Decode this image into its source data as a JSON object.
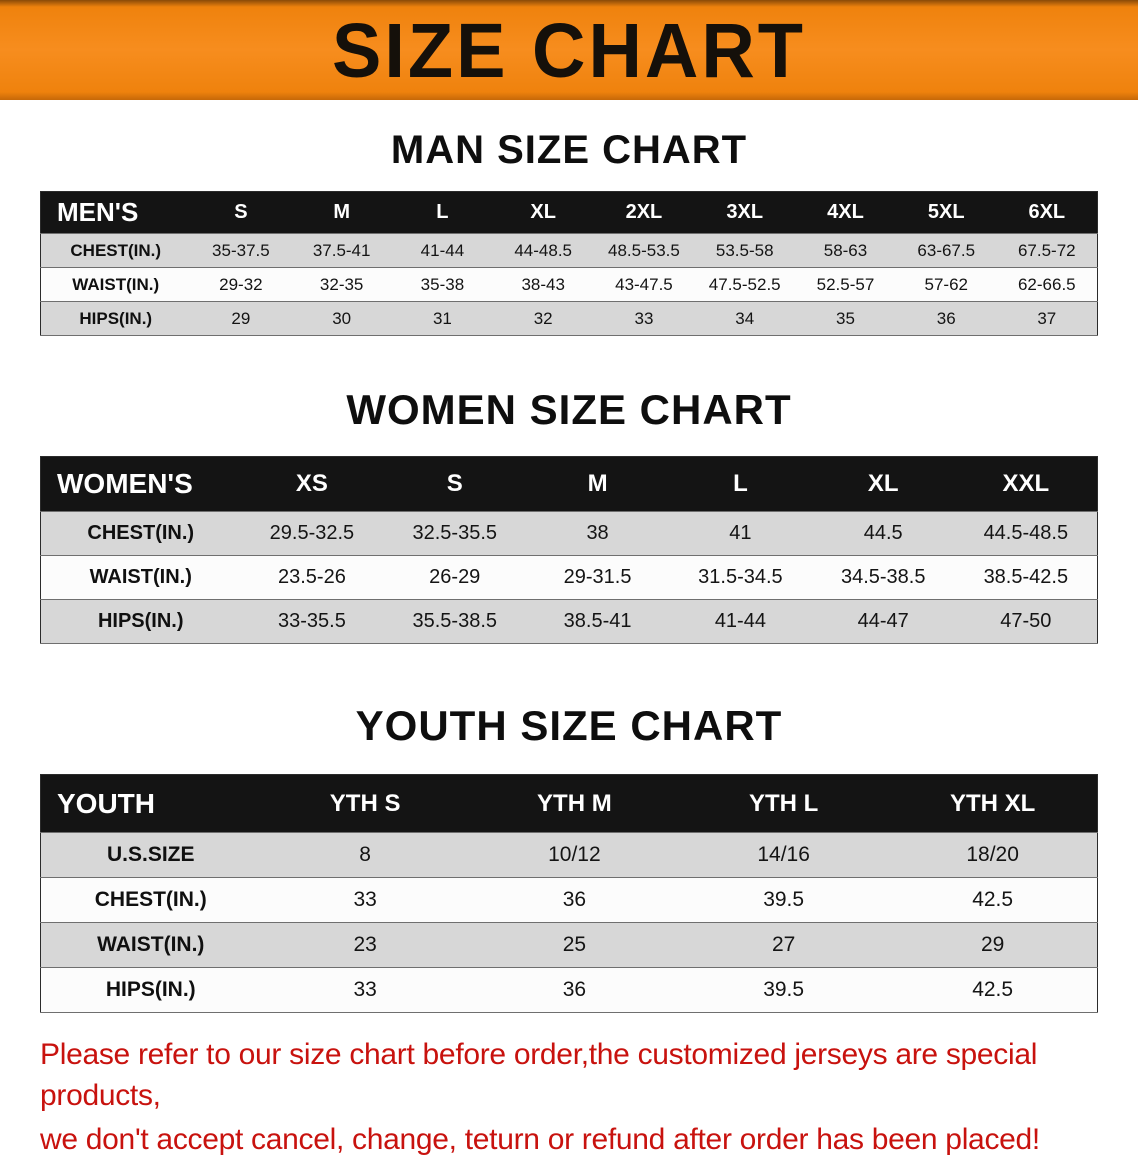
{
  "banner": {
    "title": "SIZE CHART",
    "bg_color": "#f78d1e",
    "text_color": "#15100a"
  },
  "sections": [
    {
      "id": "men",
      "title": "MAN SIZE CHART",
      "table": {
        "header": [
          "MEN'S",
          "S",
          "M",
          "L",
          "XL",
          "2XL",
          "3XL",
          "4XL",
          "5XL",
          "6XL"
        ],
        "rows": [
          [
            "CHEST(IN.)",
            "35-37.5",
            "37.5-41",
            "41-44",
            "44-48.5",
            "48.5-53.5",
            "53.5-58",
            "58-63",
            "63-67.5",
            "67.5-72"
          ],
          [
            "WAIST(IN.)",
            "29-32",
            "32-35",
            "35-38",
            "38-43",
            "43-47.5",
            "47.5-52.5",
            "52.5-57",
            "57-62",
            "62-66.5"
          ],
          [
            "HIPS(IN.)",
            "29",
            "30",
            "31",
            "32",
            "33",
            "34",
            "35",
            "36",
            "37"
          ]
        ]
      }
    },
    {
      "id": "women",
      "title": "WOMEN SIZE CHART",
      "table": {
        "header": [
          "WOMEN'S",
          "XS",
          "S",
          "M",
          "L",
          "XL",
          "XXL"
        ],
        "rows": [
          [
            "CHEST(IN.)",
            "29.5-32.5",
            "32.5-35.5",
            "38",
            "41",
            "44.5",
            "44.5-48.5"
          ],
          [
            "WAIST(IN.)",
            "23.5-26",
            "26-29",
            "29-31.5",
            "31.5-34.5",
            "34.5-38.5",
            "38.5-42.5"
          ],
          [
            "HIPS(IN.)",
            "33-35.5",
            "35.5-38.5",
            "38.5-41",
            "41-44",
            "44-47",
            "47-50"
          ]
        ]
      }
    },
    {
      "id": "youth",
      "title": "YOUTH SIZE CHART",
      "table": {
        "header": [
          "YOUTH",
          "YTH S",
          "YTH M",
          "YTH L",
          "YTH XL"
        ],
        "rows": [
          [
            "U.S.SIZE",
            "8",
            "10/12",
            "14/16",
            "18/20"
          ],
          [
            "CHEST(IN.)",
            "33",
            "36",
            "39.5",
            "42.5"
          ],
          [
            "WAIST(IN.)",
            "23",
            "25",
            "27",
            "29"
          ],
          [
            "HIPS(IN.)",
            "33",
            "36",
            "39.5",
            "42.5"
          ]
        ]
      }
    }
  ],
  "footer": {
    "lines": [
      "Please refer to our size chart before order,the customized jerseys are special products,",
      "we don't accept cancel, change, teturn or refund after order has been placed!"
    ],
    "text_color": "#c8120e"
  },
  "colors": {
    "table_header_bg": "#141414",
    "row_shaded": "#d7d7d7",
    "row_plain": "#fcfcfc"
  }
}
